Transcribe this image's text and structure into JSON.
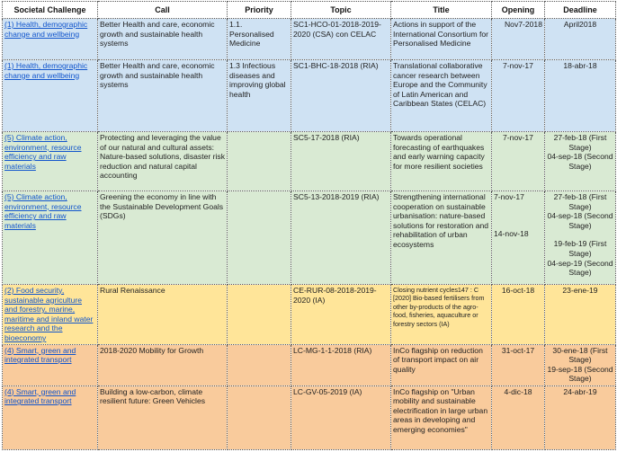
{
  "headers": {
    "challenge": "Societal Challenge",
    "call": "Call",
    "priority": "Priority",
    "topic": "Topic",
    "title": "Title",
    "opening": "Opening",
    "deadline": "Deadline"
  },
  "colors": {
    "blue": "#cfe2f3",
    "green": "#d9ead3",
    "yellow": "#ffe599",
    "orange": "#f9cb9c",
    "link": "#1155cc"
  },
  "rows": [
    {
      "challenge": "(1) Health, demographic change and wellbeing",
      "call": "Better Health and care, economic growth and sustainable health systems",
      "priority": "1.1. Personalised Medicine",
      "topic": "SC1-HCO-01-2018-2019-2020 (CSA) con CELAC",
      "title": "Actions in support of the International Consortium for Personalised Medicine",
      "opening": "Nov7-2018",
      "deadline": "April2018"
    },
    {
      "challenge": "(1) Health, demographic change and wellbeing",
      "call": "Better Health and care, economic growth and sustainable health systems",
      "priority": "1.3 Infectious diseases and improving global health",
      "topic": "SC1-BHC-18-2018 (RIA)",
      "title": "Translational collaborative cancer research between Europe and the Community of Latin American and Caribbean States (CELAC)",
      "opening": "7-nov-17",
      "deadline": "18-abr-18"
    },
    {
      "challenge": "(5) Climate action, environment, resource efficiency and raw materials",
      "call": "Protecting and leveraging the value of our natural and cultural assets: Nature-based solutions, disaster risk reduction and natural capital accounting",
      "priority": "",
      "topic": "SC5-17-2018 (RIA)",
      "title": "Towards operational forecasting of earthquakes and early warning capacity for more resilient societies",
      "opening": "7-nov-17",
      "deadline_1": "27-feb-18 (First Stage)",
      "deadline_2": "04-sep-18 (Second Stage)"
    },
    {
      "challenge": "(5) Climate action, environment, resource efficiency and raw materials",
      "call": "Greening the economy in line with the Sustainable Development Goals (SDGs)",
      "priority": "",
      "topic": "SC5-13-2018-2019 (RIA)",
      "title": "Strengthening international cooperation on sustainable urbanisation: nature-based solutions for restoration and rehabilitation of urban ecosystems",
      "opening_1": "7-nov-17",
      "opening_2": "14-nov-18",
      "deadline_1": "27-feb-18 (First Stage)",
      "deadline_2": "04-sep-18 (Second Stage)",
      "deadline_3": "19-feb-19 (First Stage)",
      "deadline_4": "04-sep-19 (Second Stage)"
    },
    {
      "challenge": "(2) Food security, sustainable agriculture and forestry, marine, maritime and inland water research and the bioeconomy",
      "call": "Rural Renaissance",
      "priority": "",
      "topic": "CE-RUR-08-2018-2019-2020 (IA)",
      "title": "Closing nutrient cycles147 : C [2020] Bio-based fertilisers from other by-products of the agro-food, fisheries, aquaculture or forestry sectors (IA)",
      "opening": "16-oct-18",
      "deadline": "23-ene-19"
    },
    {
      "challenge": "(4) Smart, green and integrated transport",
      "call": "2018-2020 Mobility for Growth",
      "priority": "",
      "topic": "LC-MG-1-1-2018 (RIA)",
      "title": "InCo flagship on reduction of transport impact on air quality",
      "opening": "31-oct-17",
      "deadline_1": "30-ene-18 (First Stage)",
      "deadline_2": "19-sep-18 (Second Stage)"
    },
    {
      "challenge": "(4) Smart, green and integrated transport",
      "call": "Building a low-carbon, climate resilient future: Green Vehicles",
      "priority": "",
      "topic": "LC-GV-05-2019 (IA)",
      "title": "InCo flagship on \"Urban mobility and sustainable electrification in large urban areas in developing and emerging economies\"",
      "opening": "4-dic-18",
      "deadline": "24-abr-19"
    }
  ]
}
